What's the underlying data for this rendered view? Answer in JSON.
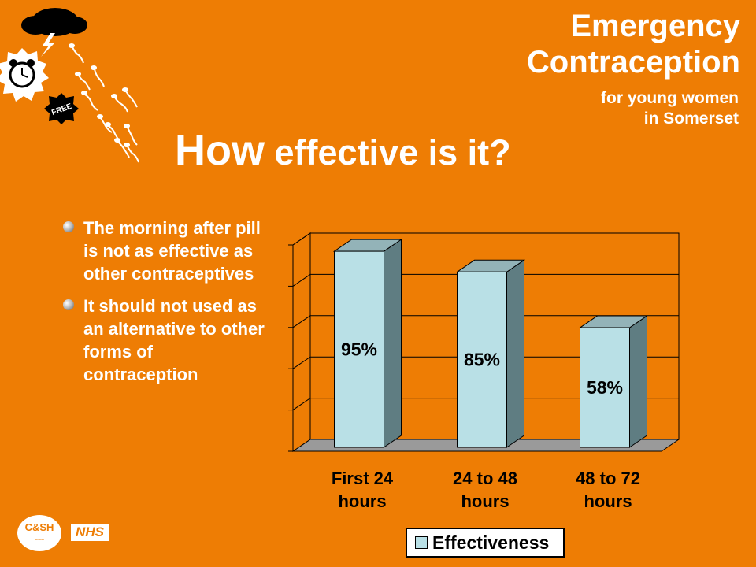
{
  "brand": {
    "line1": "Emergency",
    "line2": "Contraception"
  },
  "tagline": {
    "line1": "for young women",
    "line2": "in Somerset"
  },
  "title": {
    "part1": "How",
    "part2": " effective is it?"
  },
  "badge": {
    "free": "FREE"
  },
  "bullets": [
    {
      "text": "The morning after pill is not as effective as other contraceptives"
    },
    {
      "text": "It should not used as an alternative to other forms of contraception"
    }
  ],
  "logos": {
    "nhs": "NHS",
    "csh": "C&SH"
  },
  "colors": {
    "background": "#EE7D04",
    "bar_front": "#B9E0E6",
    "bar_side": "#5F7D82",
    "bar_top": "#93B3B8",
    "plot_wall": "#EE7D04"
  },
  "chart_data": {
    "type": "bar",
    "categories": [
      [
        "First 24",
        "hours"
      ],
      [
        "24 to 48",
        "hours"
      ],
      [
        "48 to 72",
        "hours"
      ]
    ],
    "values": [
      95,
      85,
      58
    ],
    "data_labels": [
      "95%",
      "85%",
      "58%"
    ],
    "series": [
      {
        "name": "Effectiveness",
        "values": [
          95,
          85,
          58
        ]
      }
    ],
    "ylim": [
      0,
      100
    ],
    "grid": true,
    "legend_position": "bottom"
  }
}
